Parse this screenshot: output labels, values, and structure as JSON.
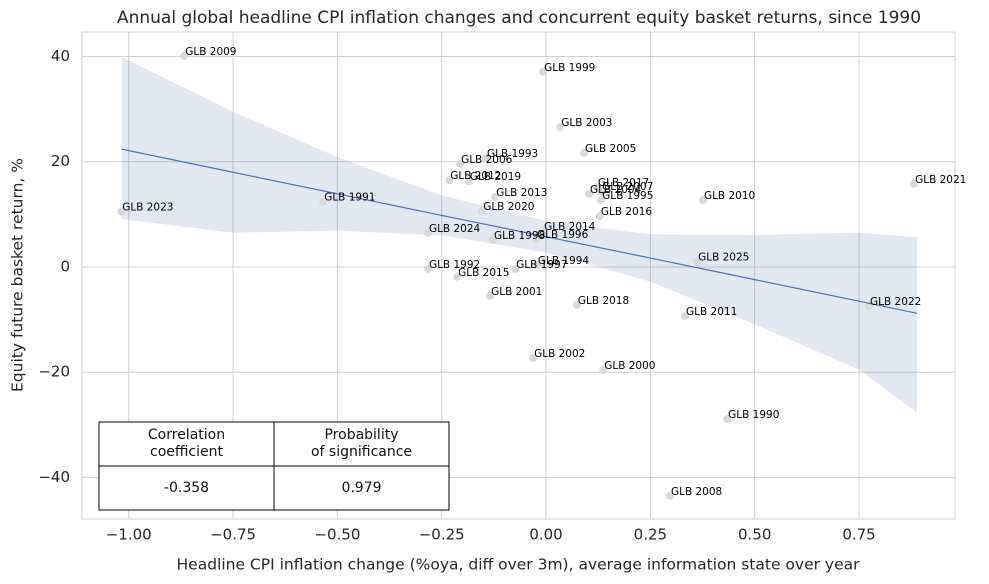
{
  "chart_data": {
    "type": "scatter",
    "title": "Annual global headline CPI inflation changes and concurrent equity basket returns, since 1990",
    "x_label": "Headline CPI inflation change (%oya, diff over 3m), average information state over year",
    "y_label": "Equity future basket return, %",
    "point_color": "#d9d9d9",
    "point_labels": [
      "GLB 2009",
      "GLB 1999",
      "GLB 2003",
      "GLB 2005",
      "GLB 1993",
      "GLB 2006",
      "GLB 2012",
      "GLB 2019",
      "GLB 2021",
      "GLB 2017",
      "GLB 2004",
      "GLB 2007",
      "GLB 1995",
      "GLB 2013",
      "GLB 2010",
      "GLB 1991",
      "GLB 2023",
      "GLB 2020",
      "GLB 2016",
      "GLB 2024",
      "GLB 2014",
      "GLB 1998",
      "GLB 1996",
      "GLB 2025",
      "GLB 1994",
      "GLB 1997",
      "GLB 1992",
      "GLB 2015",
      "GLB 2001",
      "GLB 2018",
      "GLB 2011",
      "GLB 2022",
      "GLB 2002",
      "GLB 2000",
      "GLB 1990",
      "GLB 2008"
    ],
    "x": [
      -0.867,
      -0.007,
      0.034,
      0.091,
      -0.144,
      -0.206,
      -0.232,
      -0.185,
      0.882,
      0.122,
      0.103,
      0.132,
      0.132,
      -0.122,
      0.376,
      -0.534,
      -1.018,
      -0.153,
      0.129,
      -0.283,
      -0.007,
      -0.127,
      -0.024,
      0.362,
      -0.022,
      -0.074,
      -0.283,
      -0.213,
      -0.134,
      0.074,
      0.333,
      0.774,
      -0.031,
      0.137,
      0.434,
      0.297
    ],
    "values": [
      40.1,
      37.1,
      26.6,
      21.7,
      20.7,
      19.6,
      16.5,
      16.3,
      15.8,
      15.2,
      13.9,
      14.4,
      12.7,
      13.3,
      12.7,
      12.4,
      10.5,
      10.6,
      9.7,
      6.5,
      6.8,
      5.1,
      5.3,
      1.0,
      0.4,
      -0.4,
      -0.4,
      -1.9,
      -5.5,
      -7.2,
      -9.3,
      -7.4,
      -17.3,
      -19.6,
      -28.9,
      -43.5
    ],
    "fit": {
      "color": "#4c72b0",
      "x": [
        -1.017,
        -0.75,
        -0.5,
        -0.25,
        0,
        0.25,
        0.5,
        0.75,
        0.889
      ],
      "values": [
        22.4,
        18.0,
        13.9,
        9.8,
        5.75,
        1.7,
        -2.4,
        -6.5,
        -8.8
      ],
      "upper": [
        39.9,
        29.5,
        20.9,
        13.6,
        8.75,
        6.2,
        6.1,
        6.5,
        5.7
      ],
      "lower": [
        9.1,
        6.5,
        6.9,
        6.0,
        2.75,
        -2.8,
        -10.9,
        -19.5,
        -27.7
      ]
    },
    "xlim": [
      -1.112,
      0.98
    ],
    "ylim": [
      -47.9,
      44.66
    ],
    "xticks": [
      {
        "value": -1,
        "label": "−1.00"
      },
      {
        "value": -0.75,
        "label": "−0.75"
      },
      {
        "value": -0.5,
        "label": "−0.50"
      },
      {
        "value": -0.25,
        "label": "−0.25"
      },
      {
        "value": 0,
        "label": "0.00"
      },
      {
        "value": 0.25,
        "label": "0.25"
      },
      {
        "value": 0.5,
        "label": "0.50"
      },
      {
        "value": 0.75,
        "label": "0.75"
      }
    ],
    "yticks": [
      {
        "value": -40,
        "label": "−40"
      },
      {
        "value": -20,
        "label": "−20"
      },
      0,
      20,
      40
    ],
    "grid": true,
    "table": {
      "header": [
        [
          "Correlation",
          "coefficient"
        ],
        [
          "Probability",
          "of significance"
        ]
      ],
      "rows": [
        [
          -0.358,
          0.979
        ]
      ]
    }
  }
}
